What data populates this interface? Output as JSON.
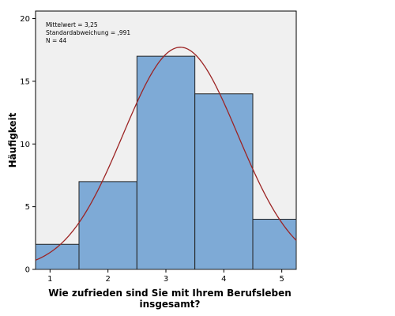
{
  "chart_data": {
    "type": "bar",
    "subtype": "histogram",
    "bins": [
      {
        "x_start": 0.75,
        "x_end": 1.5,
        "center": 1,
        "value": 2
      },
      {
        "x_start": 1.5,
        "x_end": 2.5,
        "center": 2,
        "value": 7
      },
      {
        "x_start": 2.5,
        "x_end": 3.5,
        "center": 3,
        "value": 17
      },
      {
        "x_start": 3.5,
        "x_end": 4.5,
        "center": 4,
        "value": 14
      },
      {
        "x_start": 4.5,
        "x_end": 5.25,
        "center": 5,
        "value": 4
      }
    ],
    "x_ticks": [
      1,
      2,
      3,
      4,
      5
    ],
    "y_ticks": [
      0,
      5,
      10,
      15,
      20
    ],
    "xlim": [
      0.75,
      5.25
    ],
    "ylim": [
      0,
      20.6
    ],
    "xlabel_line1": "Wie zufrieden sind Sie mit Ihrem Berufsleben",
    "xlabel_line2": "insgesamt?",
    "ylabel": "Häufigkeit",
    "stats": {
      "mean_text": "Mittelwert = 3,25",
      "sd_text": "Standardabweichung = ,991",
      "n_text": "N = 44"
    },
    "normal_curve": {
      "mean": 3.25,
      "sd": 0.991,
      "n": 44,
      "bin_width": 1
    },
    "grid": false,
    "colors": {
      "plot_background": "#f0f0f0",
      "bar_fill": "#7eaad6",
      "bar_stroke": "#222222",
      "curve": "#9c2424",
      "axis": "#000000"
    }
  }
}
